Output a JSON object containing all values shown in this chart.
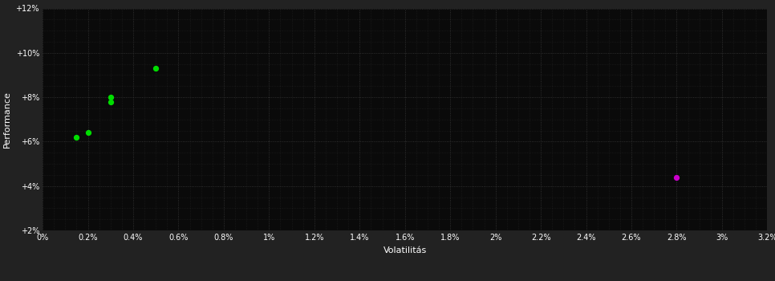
{
  "background_color": "#222222",
  "plot_bg_color": "#0a0a0a",
  "grid_color": "#3a3a3a",
  "text_color": "#ffffff",
  "xlabel": "Volatilitás",
  "ylabel": "Performance",
  "xlim": [
    0,
    0.032
  ],
  "ylim": [
    0.02,
    0.12
  ],
  "x_major_ticks": [
    0.0,
    0.002,
    0.004,
    0.006,
    0.008,
    0.01,
    0.012,
    0.014,
    0.016,
    0.018,
    0.02,
    0.022,
    0.024,
    0.026,
    0.028,
    0.03,
    0.032
  ],
  "yticks": [
    0.02,
    0.04,
    0.06,
    0.08,
    0.1,
    0.12
  ],
  "green_points": [
    [
      0.0015,
      0.062
    ],
    [
      0.002,
      0.064
    ],
    [
      0.003,
      0.078
    ],
    [
      0.003,
      0.08
    ],
    [
      0.005,
      0.093
    ]
  ],
  "magenta_points": [
    [
      0.028,
      0.044
    ]
  ],
  "green_color": "#00dd00",
  "magenta_color": "#cc00cc",
  "point_size": 18,
  "minor_grid_subdivisions": 4
}
